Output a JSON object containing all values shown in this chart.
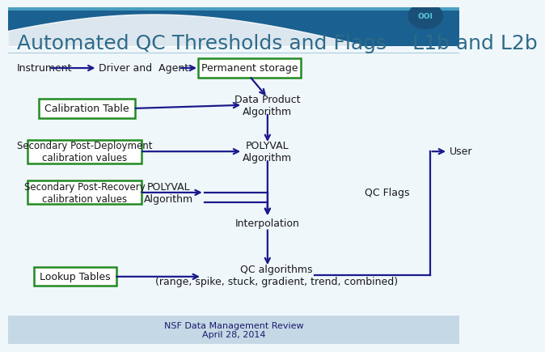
{
  "title": "Automated QC Thresholds and Flags    L1b and L2b",
  "title_fontsize": 18,
  "title_color": "#2e6b8a",
  "bg_color": "#f0f7fb",
  "header_top_color": "#1a5a8a",
  "arrow_color": "#1a1a8c",
  "box_edge_color": "#228B22",
  "box_fill": "#ffffff",
  "text_color": "#1a1a1a",
  "footer_bg": "#c5d8e5",
  "footer_text": "NSF Data Management Review\nApril 28, 2014",
  "footer_fontsize": 8,
  "lw": 1.6
}
